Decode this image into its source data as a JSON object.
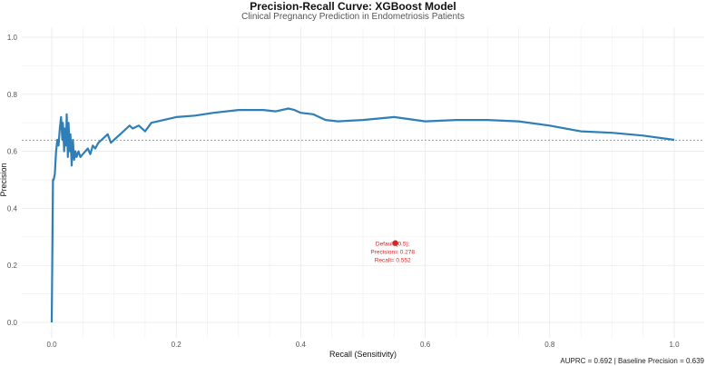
{
  "chart_data": {
    "type": "line",
    "title": "Precision-Recall Curve: XGBoost Model",
    "subtitle": "Clinical Pregnancy Prediction in Endometriosis Patients",
    "xlabel": "Recall (Sensitivity)",
    "ylabel": "Precision",
    "xlim": [
      0,
      1
    ],
    "ylim": [
      0,
      1
    ],
    "x_ticks": [
      "0.0",
      "0.2",
      "0.4",
      "0.6",
      "0.8",
      "1.0"
    ],
    "y_ticks": [
      "0.0",
      "0.2",
      "0.4",
      "0.6",
      "0.8",
      "1.0"
    ],
    "grid": true,
    "line_color": "#2e7fb8",
    "series": [
      {
        "x": [
          0.0,
          0.002,
          0.003,
          0.005,
          0.007,
          0.009,
          0.011,
          0.013,
          0.015,
          0.017,
          0.018,
          0.02,
          0.021,
          0.023,
          0.024,
          0.026,
          0.027,
          0.029,
          0.03,
          0.032,
          0.034,
          0.036,
          0.038,
          0.04,
          0.043,
          0.046,
          0.05,
          0.054,
          0.058,
          0.062,
          0.066,
          0.07,
          0.075,
          0.08,
          0.085,
          0.09,
          0.095,
          0.1,
          0.11,
          0.12,
          0.125,
          0.13,
          0.14,
          0.15,
          0.16,
          0.18,
          0.2,
          0.23,
          0.26,
          0.3,
          0.34,
          0.36,
          0.38,
          0.39,
          0.4,
          0.42,
          0.44,
          0.46,
          0.5,
          0.55,
          0.6,
          0.65,
          0.7,
          0.75,
          0.8,
          0.85,
          0.9,
          0.95,
          1.0
        ],
        "y": [
          0.0,
          0.5,
          0.5,
          0.52,
          0.6,
          0.64,
          0.62,
          0.68,
          0.72,
          0.64,
          0.7,
          0.6,
          0.68,
          0.62,
          0.73,
          0.58,
          0.7,
          0.6,
          0.66,
          0.55,
          0.64,
          0.57,
          0.6,
          0.58,
          0.6,
          0.58,
          0.59,
          0.6,
          0.61,
          0.59,
          0.62,
          0.61,
          0.63,
          0.64,
          0.65,
          0.66,
          0.63,
          0.64,
          0.66,
          0.68,
          0.69,
          0.68,
          0.69,
          0.67,
          0.7,
          0.71,
          0.72,
          0.725,
          0.735,
          0.745,
          0.745,
          0.74,
          0.75,
          0.745,
          0.735,
          0.73,
          0.71,
          0.705,
          0.71,
          0.72,
          0.705,
          0.71,
          0.71,
          0.705,
          0.69,
          0.67,
          0.665,
          0.655,
          0.64
        ]
      }
    ],
    "baseline_precision": 0.639,
    "default_point": {
      "x": 0.552,
      "y": 0.278
    },
    "annotation_lines": [
      "Default (0.5):",
      "Precision= 0.278",
      "Recall= 0.552"
    ],
    "caption": "AUPRC = 0.692 | Baseline Precision = 0.639"
  }
}
